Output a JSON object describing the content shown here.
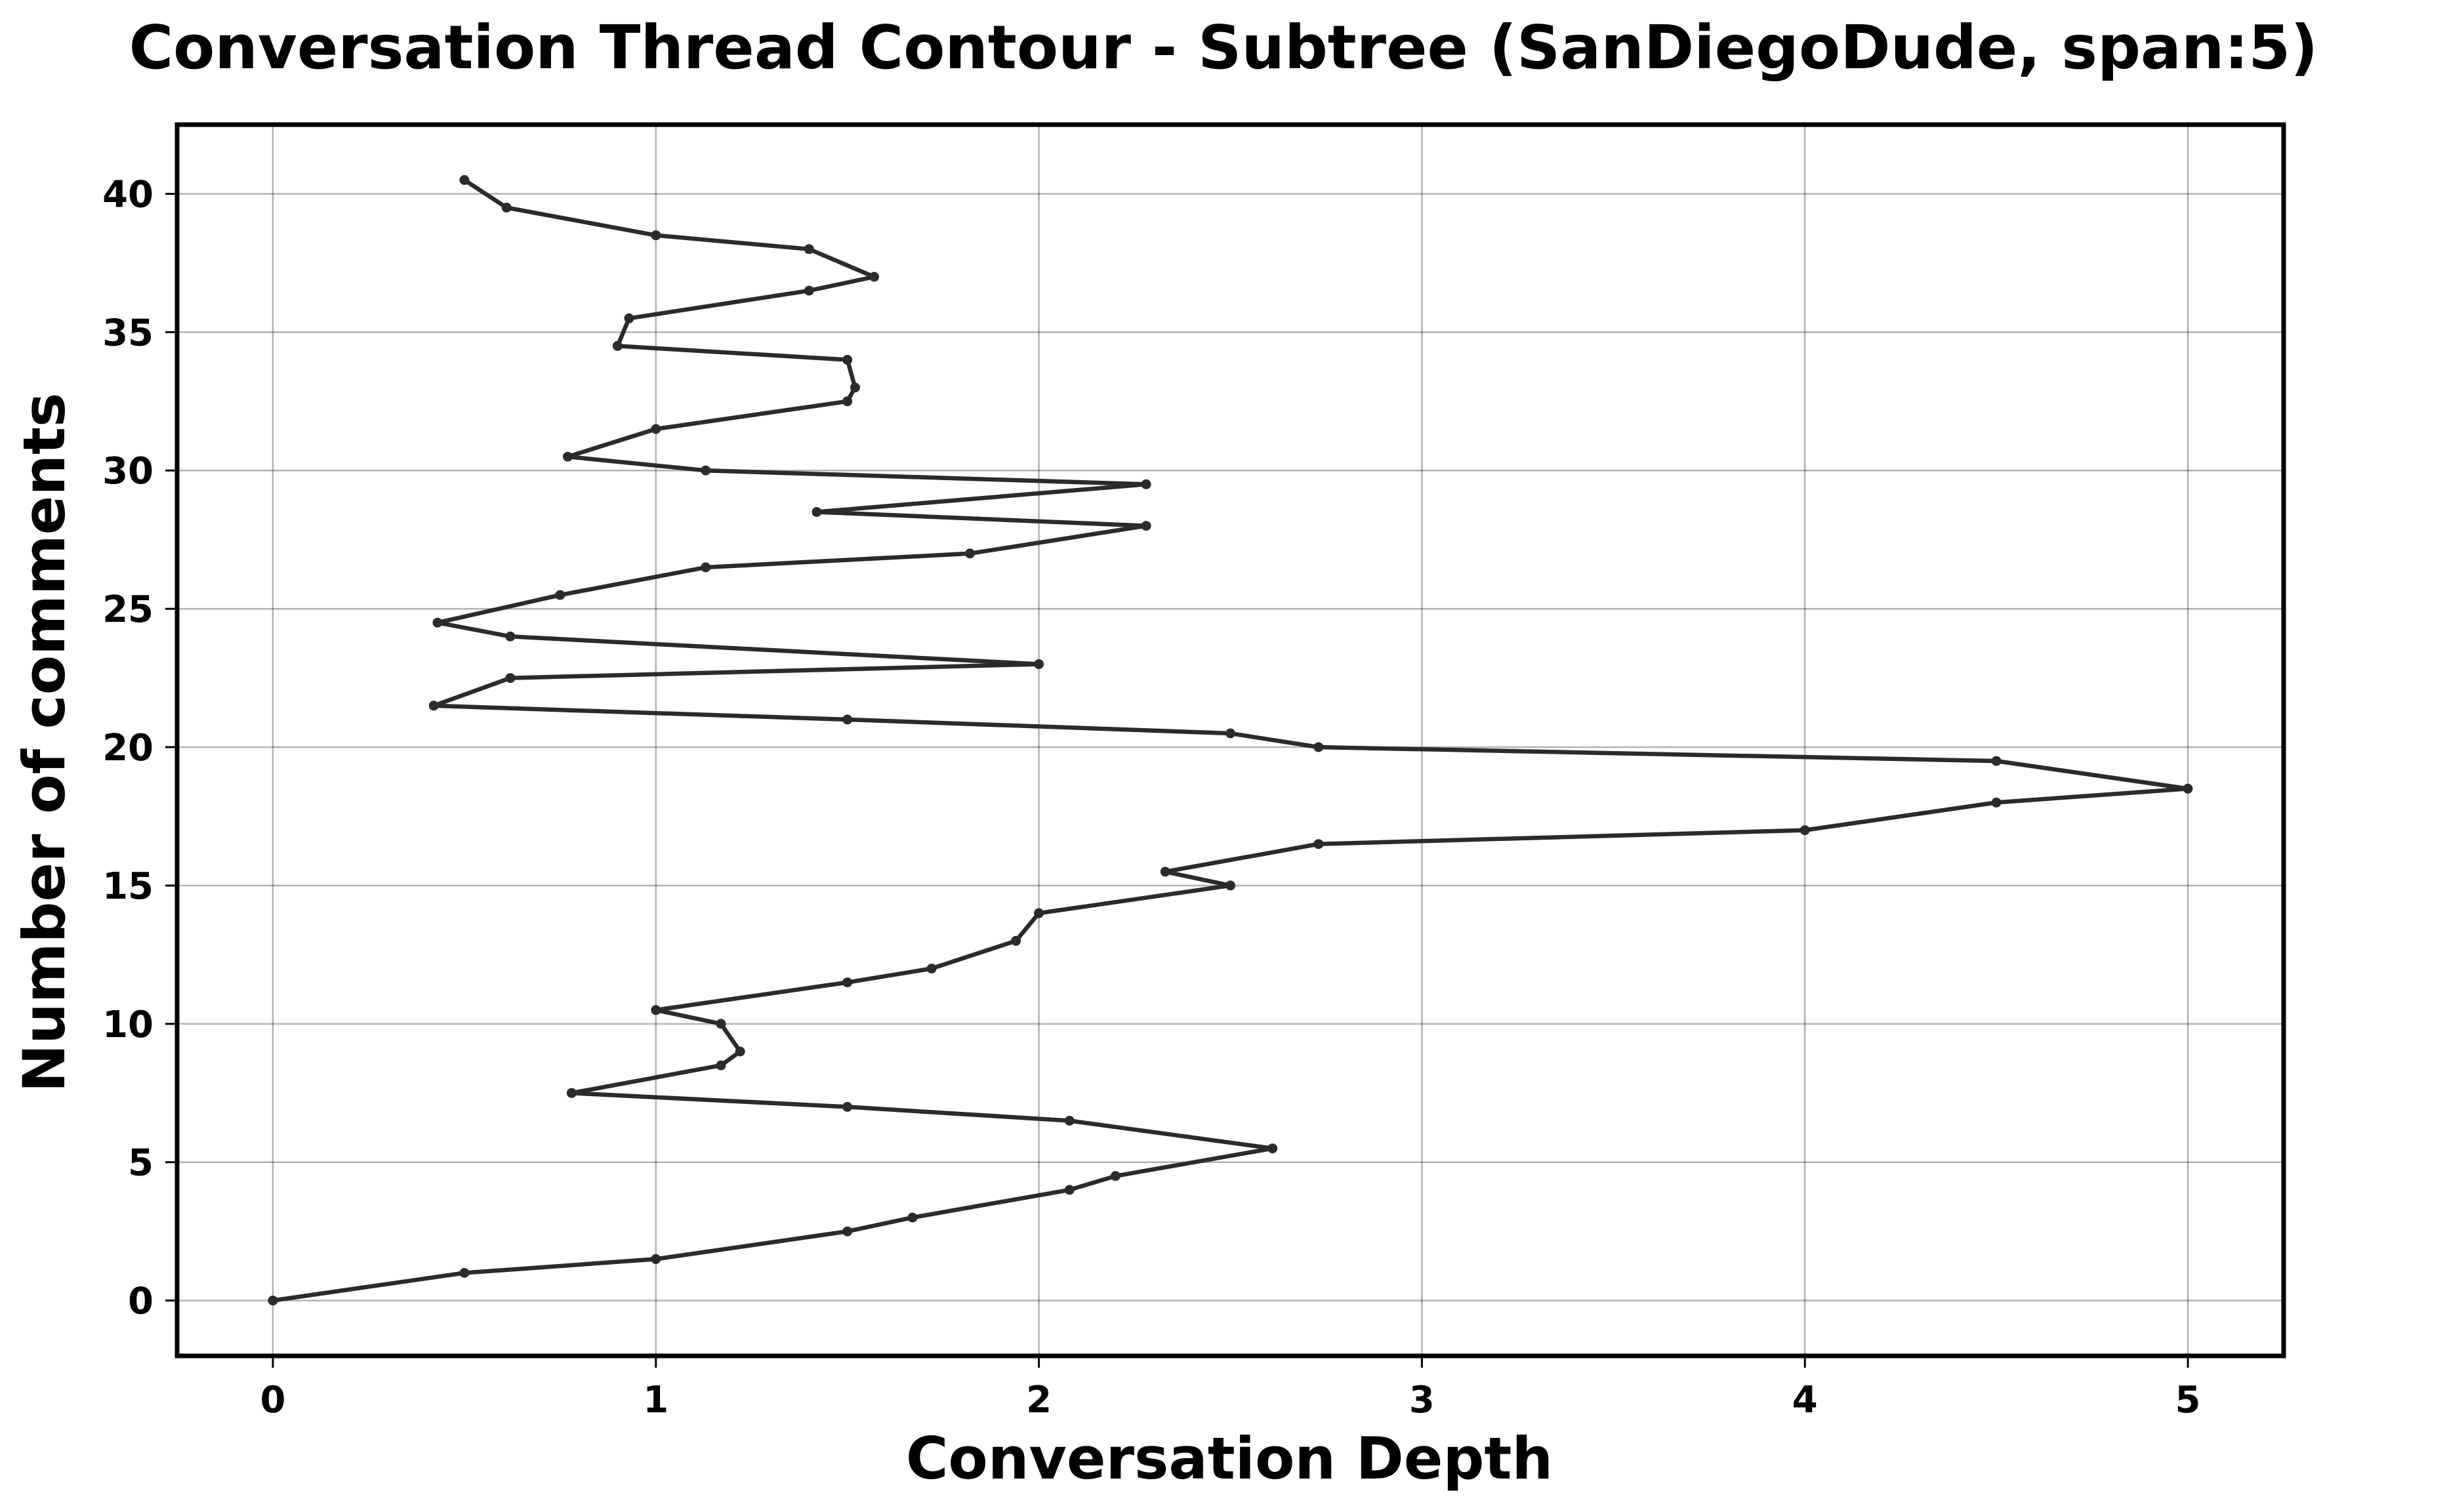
{
  "chart_data": {
    "type": "line",
    "title": "Conversation Thread Contour  - Subtree (SanDiegoDude, span:5)",
    "xlabel": "Conversation Depth",
    "ylabel": "Number of comments",
    "xlim": [
      -0.25,
      5.25
    ],
    "ylim": [
      -2,
      42.5
    ],
    "xticks": [
      0,
      1,
      2,
      3,
      4,
      5
    ],
    "yticks": [
      0,
      5,
      10,
      15,
      20,
      25,
      30,
      35,
      40
    ],
    "grid": true,
    "legend": "none",
    "series": [
      {
        "color": "#2b2b2b",
        "points": [
          [
            0,
            0
          ],
          [
            0.5,
            1
          ],
          [
            1,
            1.5
          ],
          [
            1.5,
            2.5
          ],
          [
            1.67,
            3
          ],
          [
            2.08,
            4
          ],
          [
            2.2,
            4.5
          ],
          [
            2.61,
            5.5
          ],
          [
            2.08,
            6.5
          ],
          [
            1.5,
            7
          ],
          [
            0.78,
            7.5
          ],
          [
            1.17,
            8.5
          ],
          [
            1.22,
            9
          ],
          [
            1.17,
            10
          ],
          [
            1,
            10.5
          ],
          [
            1.5,
            11.5
          ],
          [
            1.72,
            12
          ],
          [
            1.94,
            13
          ],
          [
            2,
            14
          ],
          [
            2.5,
            15
          ],
          [
            2.33,
            15.5
          ],
          [
            2.73,
            16.5
          ],
          [
            4,
            17
          ],
          [
            4.5,
            18
          ],
          [
            5,
            18.5
          ],
          [
            4.5,
            19.5
          ],
          [
            2.73,
            20
          ],
          [
            2.5,
            20.5
          ],
          [
            1.5,
            21
          ],
          [
            0.42,
            21.5
          ],
          [
            0.62,
            22.5
          ],
          [
            2,
            23
          ],
          [
            0.62,
            24
          ],
          [
            0.43,
            24.5
          ],
          [
            0.75,
            25.5
          ],
          [
            1.13,
            26.5
          ],
          [
            1.82,
            27
          ],
          [
            2.28,
            28
          ],
          [
            1.42,
            28.5
          ],
          [
            2.28,
            29.5
          ],
          [
            1.13,
            30
          ],
          [
            0.77,
            30.5
          ],
          [
            1,
            31.5
          ],
          [
            1.5,
            32.5
          ],
          [
            1.52,
            33
          ],
          [
            1.5,
            34
          ],
          [
            0.9,
            34.5
          ],
          [
            0.93,
            35.5
          ],
          [
            1.4,
            36.5
          ],
          [
            1.57,
            37
          ],
          [
            1.4,
            38
          ],
          [
            1,
            38.5
          ],
          [
            0.61,
            39.5
          ],
          [
            0.5,
            40.5
          ]
        ]
      }
    ]
  }
}
